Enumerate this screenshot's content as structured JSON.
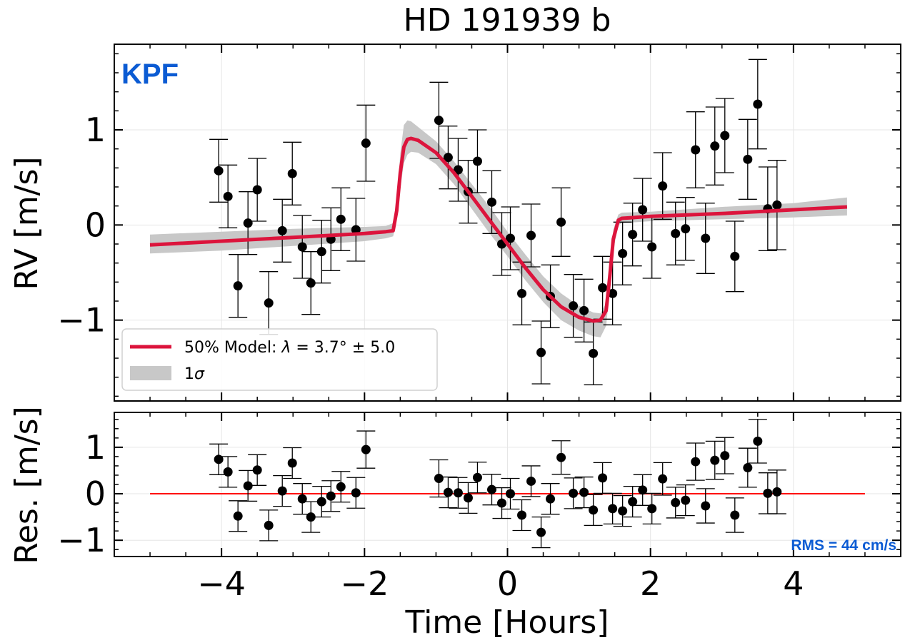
{
  "figure": {
    "title": "HD 191939 b",
    "instrument_label": "KPF",
    "rms_label": "RMS = 44 cm/s",
    "colors": {
      "model": "#dc143c",
      "band": "#c8c8c8",
      "points": "#000000",
      "instrument": "#0b5bd3",
      "residual_line": "#ff0000"
    }
  },
  "chart_data": [
    {
      "type": "scatter",
      "panel": "top",
      "title": "HD 191939 b",
      "xlabel": "",
      "ylabel": "RV [m/s]",
      "xlim": [
        -5.5,
        5.5
      ],
      "ylim": [
        -1.85,
        1.9
      ],
      "x_ticks": [
        -4,
        -2,
        0,
        2,
        4
      ],
      "y_ticks": [
        -1,
        0,
        1
      ],
      "y_tick_labels": [
        "−1",
        "0",
        "1"
      ],
      "grid": true,
      "legend": {
        "position": "lower-left",
        "entries": [
          {
            "label_prefix": "50% Model: ",
            "label_lambda": "λ",
            "label_value": " = 3.7° ±  5.0",
            "style": "line"
          },
          {
            "label_text": "1",
            "label_sigma": "σ",
            "style": "band"
          }
        ]
      },
      "model_line": {
        "x": [
          -5.0,
          -4.0,
          -3.0,
          -2.0,
          -1.7,
          -1.6,
          -1.55,
          -1.5,
          -1.45,
          -1.4,
          -1.35,
          -1.25,
          -1.0,
          -0.75,
          -0.5,
          -0.25,
          0.0,
          0.25,
          0.5,
          0.75,
          1.0,
          1.2,
          1.3,
          1.38,
          1.43,
          1.48,
          1.55,
          1.6,
          2.0,
          3.0,
          4.0,
          4.75
        ],
        "y": [
          -0.21,
          -0.17,
          -0.13,
          -0.09,
          -0.07,
          -0.06,
          0.15,
          0.55,
          0.82,
          0.9,
          0.91,
          0.89,
          0.76,
          0.55,
          0.3,
          0.05,
          -0.2,
          -0.45,
          -0.68,
          -0.86,
          -0.97,
          -1.01,
          -1.0,
          -0.9,
          -0.55,
          -0.15,
          0.05,
          0.07,
          0.09,
          0.12,
          0.16,
          0.19
        ]
      },
      "band_upper": [
        -0.1,
        -0.07,
        -0.04,
        -0.02,
        -0.01,
        0.02,
        0.25,
        0.75,
        1.05,
        1.1,
        1.09,
        1.03,
        0.88,
        0.67,
        0.43,
        0.19,
        -0.07,
        -0.31,
        -0.54,
        -0.72,
        -0.85,
        -0.92,
        -0.93,
        -0.82,
        -0.45,
        -0.05,
        0.11,
        0.13,
        0.14,
        0.19,
        0.23,
        0.29
      ],
      "band_lower": [
        -0.3,
        -0.27,
        -0.22,
        -0.17,
        -0.14,
        -0.12,
        0.05,
        0.38,
        0.65,
        0.74,
        0.77,
        0.76,
        0.64,
        0.43,
        0.17,
        -0.09,
        -0.33,
        -0.58,
        -0.81,
        -1.0,
        -1.11,
        -1.17,
        -1.18,
        -1.06,
        -0.68,
        -0.27,
        0.0,
        0.02,
        0.04,
        0.06,
        0.08,
        0.1
      ],
      "points": [
        {
          "x": -4.04,
          "y": 0.57,
          "err": 0.33
        },
        {
          "x": -3.91,
          "y": 0.3,
          "err": 0.33
        },
        {
          "x": -3.77,
          "y": -0.64,
          "err": 0.33
        },
        {
          "x": -3.63,
          "y": 0.02,
          "err": 0.33
        },
        {
          "x": -3.5,
          "y": 0.37,
          "err": 0.33
        },
        {
          "x": -3.34,
          "y": -0.82,
          "err": 0.33
        },
        {
          "x": -3.15,
          "y": -0.06,
          "err": 0.33
        },
        {
          "x": -3.01,
          "y": 0.54,
          "err": 0.33
        },
        {
          "x": -2.87,
          "y": -0.23,
          "err": 0.33
        },
        {
          "x": -2.75,
          "y": -0.61,
          "err": 0.33
        },
        {
          "x": -2.6,
          "y": -0.28,
          "err": 0.33
        },
        {
          "x": -2.47,
          "y": -0.15,
          "err": 0.33
        },
        {
          "x": -2.33,
          "y": 0.06,
          "err": 0.33
        },
        {
          "x": -2.12,
          "y": -0.05,
          "err": 0.33
        },
        {
          "x": -1.98,
          "y": 0.86,
          "err": 0.4
        },
        {
          "x": -0.96,
          "y": 1.1,
          "err": 0.4
        },
        {
          "x": -0.83,
          "y": 0.71,
          "err": 0.33
        },
        {
          "x": -0.69,
          "y": 0.58,
          "err": 0.33
        },
        {
          "x": -0.55,
          "y": 0.35,
          "err": 0.33
        },
        {
          "x": -0.42,
          "y": 0.67,
          "err": 0.33
        },
        {
          "x": -0.22,
          "y": 0.24,
          "err": 0.33
        },
        {
          "x": -0.08,
          "y": -0.2,
          "err": 0.33
        },
        {
          "x": 0.04,
          "y": -0.14,
          "err": 0.33
        },
        {
          "x": 0.2,
          "y": -0.72,
          "err": 0.33
        },
        {
          "x": 0.33,
          "y": -0.11,
          "err": 0.33
        },
        {
          "x": 0.47,
          "y": -1.34,
          "err": 0.33
        },
        {
          "x": 0.6,
          "y": -0.75,
          "err": 0.33
        },
        {
          "x": 0.75,
          "y": 0.03,
          "err": 0.36
        },
        {
          "x": 0.92,
          "y": -0.85,
          "err": 0.33
        },
        {
          "x": 1.07,
          "y": -0.9,
          "err": 0.33
        },
        {
          "x": 1.2,
          "y": -1.35,
          "err": 0.33
        },
        {
          "x": 1.33,
          "y": -0.66,
          "err": 0.33
        },
        {
          "x": 1.47,
          "y": -0.72,
          "err": 0.33
        },
        {
          "x": 1.61,
          "y": -0.3,
          "err": 0.33
        },
        {
          "x": 1.75,
          "y": -0.1,
          "err": 0.33
        },
        {
          "x": 1.89,
          "y": 0.16,
          "err": 0.33
        },
        {
          "x": 2.02,
          "y": -0.23,
          "err": 0.33
        },
        {
          "x": 2.17,
          "y": 0.41,
          "err": 0.35
        },
        {
          "x": 2.35,
          "y": -0.09,
          "err": 0.33
        },
        {
          "x": 2.49,
          "y": -0.04,
          "err": 0.33
        },
        {
          "x": 2.63,
          "y": 0.79,
          "err": 0.4
        },
        {
          "x": 2.77,
          "y": -0.14,
          "err": 0.37
        },
        {
          "x": 2.9,
          "y": 0.83,
          "err": 0.41
        },
        {
          "x": 3.04,
          "y": 0.94,
          "err": 0.39
        },
        {
          "x": 3.18,
          "y": -0.33,
          "err": 0.37
        },
        {
          "x": 3.36,
          "y": 0.69,
          "err": 0.42
        },
        {
          "x": 3.5,
          "y": 1.27,
          "err": 0.47
        },
        {
          "x": 3.64,
          "y": 0.17,
          "err": 0.44
        },
        {
          "x": 3.77,
          "y": 0.21,
          "err": 0.47
        }
      ]
    },
    {
      "type": "scatter",
      "panel": "bottom",
      "xlabel": "Time [Hours]",
      "ylabel": "Res. [m/s]",
      "xlim": [
        -5.5,
        5.5
      ],
      "ylim": [
        -1.35,
        1.75
      ],
      "x_ticks": [
        -4,
        -2,
        0,
        2,
        4
      ],
      "x_tick_labels": [
        "−4",
        "−2",
        "0",
        "2",
        "4"
      ],
      "y_ticks": [
        -1,
        0,
        1
      ],
      "y_tick_labels": [
        "−1",
        "0",
        "1"
      ],
      "grid": true,
      "zero_line": {
        "x": [
          -5.0,
          5.0
        ],
        "y": 0
      },
      "points": [
        {
          "x": -4.04,
          "y": 0.74,
          "err": 0.33
        },
        {
          "x": -3.91,
          "y": 0.47,
          "err": 0.33
        },
        {
          "x": -3.77,
          "y": -0.48,
          "err": 0.33
        },
        {
          "x": -3.63,
          "y": 0.17,
          "err": 0.33
        },
        {
          "x": -3.5,
          "y": 0.51,
          "err": 0.33
        },
        {
          "x": -3.34,
          "y": -0.68,
          "err": 0.33
        },
        {
          "x": -3.15,
          "y": 0.06,
          "err": 0.33
        },
        {
          "x": -3.01,
          "y": 0.66,
          "err": 0.33
        },
        {
          "x": -2.87,
          "y": -0.11,
          "err": 0.33
        },
        {
          "x": -2.75,
          "y": -0.5,
          "err": 0.33
        },
        {
          "x": -2.6,
          "y": -0.17,
          "err": 0.33
        },
        {
          "x": -2.47,
          "y": -0.05,
          "err": 0.33
        },
        {
          "x": -2.33,
          "y": 0.15,
          "err": 0.33
        },
        {
          "x": -2.12,
          "y": 0.02,
          "err": 0.33
        },
        {
          "x": -1.98,
          "y": 0.95,
          "err": 0.4
        },
        {
          "x": -0.96,
          "y": 0.33,
          "err": 0.4
        },
        {
          "x": -0.83,
          "y": 0.03,
          "err": 0.33
        },
        {
          "x": -0.69,
          "y": 0.02,
          "err": 0.33
        },
        {
          "x": -0.55,
          "y": -0.09,
          "err": 0.33
        },
        {
          "x": -0.42,
          "y": 0.35,
          "err": 0.33
        },
        {
          "x": -0.22,
          "y": 0.09,
          "err": 0.33
        },
        {
          "x": -0.08,
          "y": -0.2,
          "err": 0.33
        },
        {
          "x": 0.04,
          "y": 0.0,
          "err": 0.33
        },
        {
          "x": 0.2,
          "y": -0.46,
          "err": 0.33
        },
        {
          "x": 0.33,
          "y": 0.27,
          "err": 0.33
        },
        {
          "x": 0.47,
          "y": -0.83,
          "err": 0.33
        },
        {
          "x": 0.6,
          "y": -0.11,
          "err": 0.33
        },
        {
          "x": 0.75,
          "y": 0.78,
          "err": 0.36
        },
        {
          "x": 0.92,
          "y": 0.01,
          "err": 0.33
        },
        {
          "x": 1.07,
          "y": 0.03,
          "err": 0.33
        },
        {
          "x": 1.2,
          "y": -0.35,
          "err": 0.33
        },
        {
          "x": 1.33,
          "y": 0.34,
          "err": 0.33
        },
        {
          "x": 1.47,
          "y": -0.32,
          "err": 0.33
        },
        {
          "x": 1.61,
          "y": -0.37,
          "err": 0.33
        },
        {
          "x": 1.75,
          "y": -0.17,
          "err": 0.33
        },
        {
          "x": 1.89,
          "y": 0.08,
          "err": 0.33
        },
        {
          "x": 2.02,
          "y": -0.32,
          "err": 0.33
        },
        {
          "x": 2.17,
          "y": 0.32,
          "err": 0.35
        },
        {
          "x": 2.35,
          "y": -0.19,
          "err": 0.33
        },
        {
          "x": 2.49,
          "y": -0.14,
          "err": 0.33
        },
        {
          "x": 2.63,
          "y": 0.69,
          "err": 0.4
        },
        {
          "x": 2.77,
          "y": -0.26,
          "err": 0.37
        },
        {
          "x": 2.9,
          "y": 0.72,
          "err": 0.41
        },
        {
          "x": 3.04,
          "y": 0.82,
          "err": 0.39
        },
        {
          "x": 3.18,
          "y": -0.46,
          "err": 0.37
        },
        {
          "x": 3.36,
          "y": 0.56,
          "err": 0.42
        },
        {
          "x": 3.5,
          "y": 1.13,
          "err": 0.47
        },
        {
          "x": 3.64,
          "y": 0.01,
          "err": 0.44
        },
        {
          "x": 3.77,
          "y": 0.04,
          "err": 0.47
        }
      ]
    }
  ]
}
